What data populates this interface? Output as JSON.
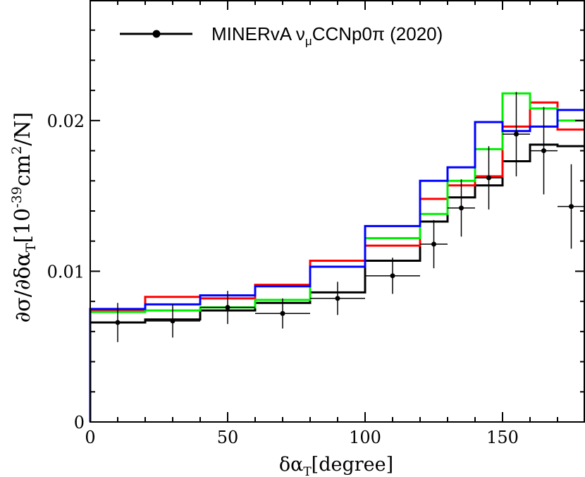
{
  "chart_data": {
    "type": "line",
    "title": "",
    "xlabel": {
      "main": "δα",
      "sub": "T",
      "rest": "[degree]"
    },
    "ylabel": {
      "part1": "∂σ/∂δα",
      "sub": "T",
      "part2": "[10",
      "sup": "-39",
      "part3": "cm",
      "sup2": "2",
      "part4": "/N]"
    },
    "xlim": [
      0,
      180
    ],
    "ylim": [
      0,
      0.028
    ],
    "x_ticks": [
      0,
      50,
      100,
      150
    ],
    "x_tick_labels": [
      "0",
      "50",
      "100",
      "150"
    ],
    "y_ticks": [
      0,
      0.01,
      0.02
    ],
    "y_tick_labels": [
      "0",
      "0.01",
      "0.02"
    ],
    "grid": false,
    "legend": {
      "placement": "top-left",
      "entry": {
        "main": "MINERvA ν",
        "sub": "μ",
        "rest": "CCNp0π (2020)"
      }
    },
    "bin_edges": [
      0,
      20,
      40,
      60,
      80,
      100,
      120,
      130,
      140,
      150,
      160,
      170,
      180
    ],
    "series": [
      {
        "color": "#000000",
        "style": "histogram",
        "values": [
          0.0066,
          0.0068,
          0.0074,
          0.0079,
          0.0086,
          0.0107,
          0.0133,
          0.0149,
          0.0157,
          0.0173,
          0.0184,
          0.0183
        ]
      },
      {
        "color": "#ff0000",
        "style": "histogram",
        "values": [
          0.0074,
          0.0083,
          0.0082,
          0.0091,
          0.0107,
          0.0117,
          0.0148,
          0.0157,
          0.0163,
          0.0196,
          0.0212,
          0.0194
        ]
      },
      {
        "color": "#00ee00",
        "style": "histogram",
        "values": [
          0.0073,
          0.0074,
          0.0076,
          0.0081,
          0.0103,
          0.0122,
          0.0138,
          0.016,
          0.0181,
          0.0218,
          0.0208,
          0.02
        ]
      },
      {
        "color": "#0000ff",
        "style": "histogram",
        "values": [
          0.0075,
          0.0078,
          0.0084,
          0.009,
          0.0103,
          0.013,
          0.016,
          0.0169,
          0.0199,
          0.0193,
          0.0196,
          0.0207
        ]
      },
      {
        "name": "MINERvA νμCCNp0π (2020)",
        "color": "#000000",
        "style": "points",
        "x": [
          10,
          30,
          50,
          70,
          90,
          110,
          125,
          135,
          145,
          155,
          165,
          175
        ],
        "y": [
          0.0066,
          0.0067,
          0.0076,
          0.0072,
          0.0082,
          0.0097,
          0.0118,
          0.0142,
          0.0162,
          0.0191,
          0.018,
          0.0143
        ],
        "x_err": [
          10,
          10,
          10,
          10,
          10,
          10,
          5,
          5,
          5,
          5,
          5,
          5
        ],
        "y_err": [
          0.0013,
          0.0011,
          0.0011,
          0.001,
          0.0011,
          0.0012,
          0.0016,
          0.0019,
          0.0021,
          0.0028,
          0.0029,
          0.0028
        ]
      }
    ]
  }
}
